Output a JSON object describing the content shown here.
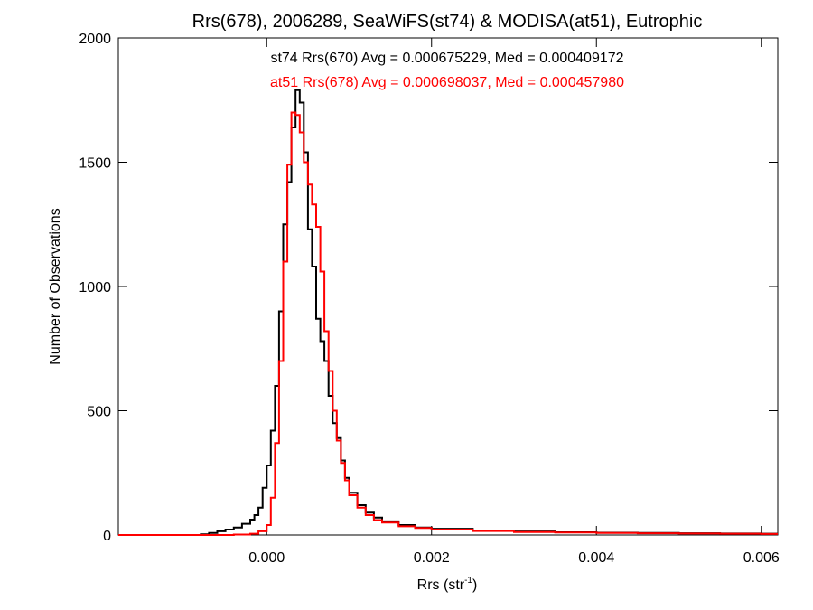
{
  "chart_data": {
    "type": "histogram",
    "title": "Rrs(678), 2006289, SeaWiFS(st74) & MODISA(at51), Eutrophic",
    "xlabel_main": "Rrs (str",
    "xlabel_sup": "-1",
    "xlabel_close": ")",
    "ylabel": "Number of Observations",
    "xlim": [
      -0.0018,
      0.0062
    ],
    "ylim": [
      0,
      2000
    ],
    "xticks": [
      {
        "value": 0.0,
        "label": "0.000"
      },
      {
        "value": 0.002,
        "label": "0.002"
      },
      {
        "value": 0.004,
        "label": "0.004"
      },
      {
        "value": 0.006,
        "label": "0.006"
      }
    ],
    "yticks": [
      {
        "value": 0,
        "label": "0"
      },
      {
        "value": 500,
        "label": "500"
      },
      {
        "value": 1000,
        "label": "1000"
      },
      {
        "value": 1500,
        "label": "1500"
      },
      {
        "value": 2000,
        "label": "2000"
      }
    ],
    "grid": false,
    "series": [
      {
        "name": "st74 Rrs(670)",
        "annotation": "st74 Rrs(670) Avg = 0.000675229, Med = 0.000409172",
        "color": "#000000",
        "points": [
          [
            -0.0018,
            0
          ],
          [
            -0.0008,
            3
          ],
          [
            -0.0007,
            8
          ],
          [
            -0.0006,
            15
          ],
          [
            -0.0005,
            22
          ],
          [
            -0.0004,
            30
          ],
          [
            -0.0003,
            45
          ],
          [
            -0.0002,
            62
          ],
          [
            -0.00015,
            80
          ],
          [
            -0.0001,
            110
          ],
          [
            -5e-05,
            190
          ],
          [
            0.0,
            280
          ],
          [
            5e-05,
            420
          ],
          [
            0.0001,
            600
          ],
          [
            0.00015,
            900
          ],
          [
            0.0002,
            1250
          ],
          [
            0.00025,
            1420
          ],
          [
            0.0003,
            1640
          ],
          [
            0.00035,
            1790
          ],
          [
            0.0004,
            1740
          ],
          [
            0.00045,
            1540
          ],
          [
            0.0005,
            1230
          ],
          [
            0.00055,
            1080
          ],
          [
            0.0006,
            870
          ],
          [
            0.00065,
            780
          ],
          [
            0.0007,
            700
          ],
          [
            0.00075,
            560
          ],
          [
            0.0008,
            450
          ],
          [
            0.00085,
            390
          ],
          [
            0.0009,
            300
          ],
          [
            0.00095,
            230
          ],
          [
            0.001,
            170
          ],
          [
            0.0011,
            120
          ],
          [
            0.0012,
            90
          ],
          [
            0.0013,
            70
          ],
          [
            0.0014,
            55
          ],
          [
            0.0016,
            40
          ],
          [
            0.0018,
            30
          ],
          [
            0.002,
            25
          ],
          [
            0.0025,
            18
          ],
          [
            0.003,
            14
          ],
          [
            0.0035,
            11
          ],
          [
            0.004,
            9
          ],
          [
            0.0045,
            8
          ],
          [
            0.005,
            7
          ],
          [
            0.0055,
            6
          ],
          [
            0.006,
            5
          ]
        ]
      },
      {
        "name": "at51 Rrs(678)",
        "annotation": "at51 Rrs(678) Avg = 0.000698037, Med = 0.000457980",
        "color": "#ff0000",
        "points": [
          [
            -0.0018,
            0
          ],
          [
            -0.0004,
            2
          ],
          [
            -0.0002,
            5
          ],
          [
            -0.0001,
            15
          ],
          [
            0.0,
            40
          ],
          [
            5e-05,
            150
          ],
          [
            0.0001,
            370
          ],
          [
            0.00015,
            700
          ],
          [
            0.0002,
            1100
          ],
          [
            0.00025,
            1490
          ],
          [
            0.0003,
            1700
          ],
          [
            0.00035,
            1690
          ],
          [
            0.0004,
            1620
          ],
          [
            0.00045,
            1500
          ],
          [
            0.0005,
            1410
          ],
          [
            0.00055,
            1330
          ],
          [
            0.0006,
            1240
          ],
          [
            0.00065,
            1060
          ],
          [
            0.0007,
            820
          ],
          [
            0.00075,
            660
          ],
          [
            0.0008,
            500
          ],
          [
            0.00085,
            380
          ],
          [
            0.0009,
            290
          ],
          [
            0.00095,
            220
          ],
          [
            0.001,
            160
          ],
          [
            0.0011,
            110
          ],
          [
            0.0012,
            80
          ],
          [
            0.0013,
            60
          ],
          [
            0.0014,
            50
          ],
          [
            0.0016,
            35
          ],
          [
            0.0018,
            28
          ],
          [
            0.002,
            22
          ],
          [
            0.0025,
            16
          ],
          [
            0.003,
            12
          ],
          [
            0.0035,
            10
          ],
          [
            0.004,
            8
          ],
          [
            0.0045,
            7
          ],
          [
            0.005,
            6
          ],
          [
            0.0055,
            5
          ],
          [
            0.006,
            4
          ]
        ]
      }
    ]
  }
}
